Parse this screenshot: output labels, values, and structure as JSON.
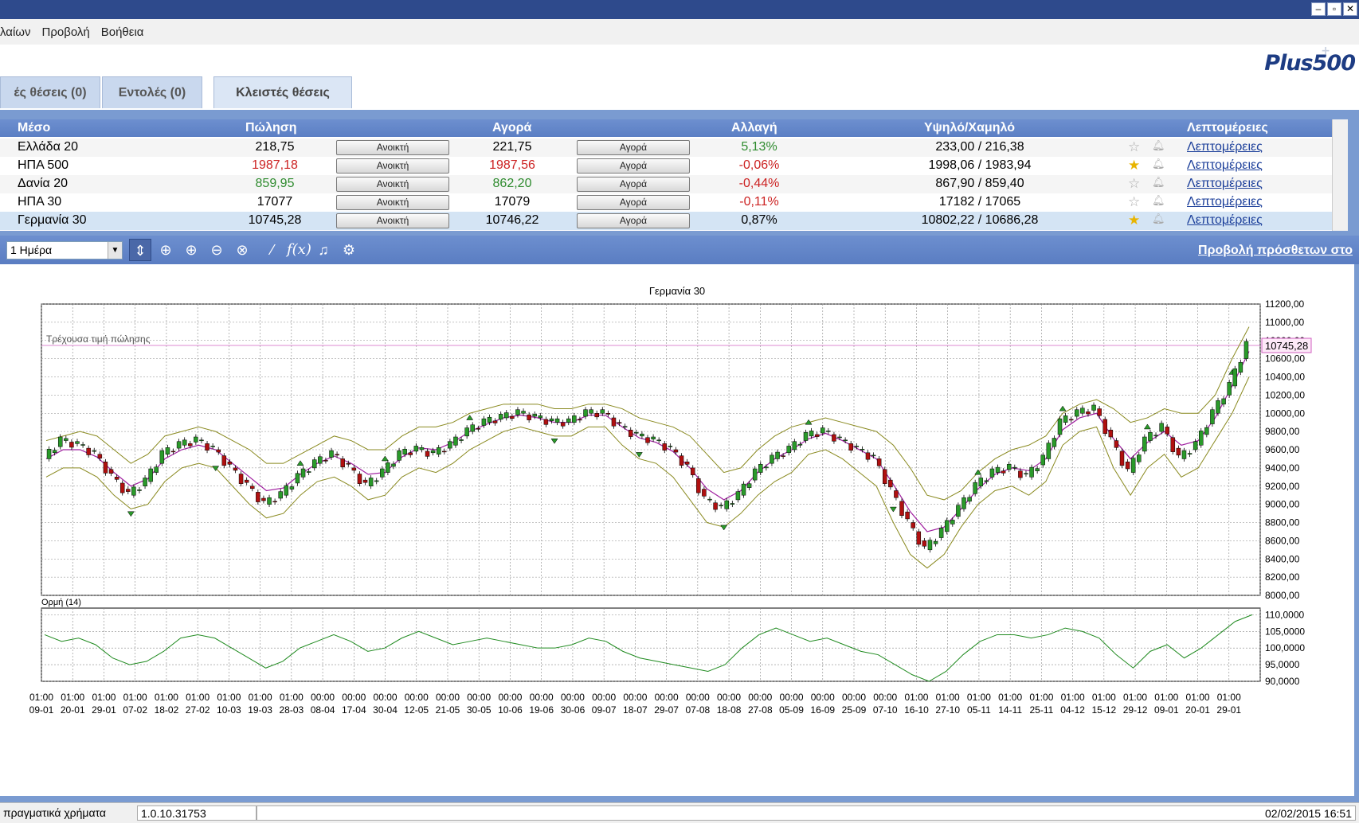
{
  "window": {
    "minimize": "–",
    "restore": "▫",
    "close": "✕"
  },
  "menu": {
    "items": [
      "λαίων",
      "Προβολή",
      "Βοήθεια"
    ]
  },
  "logo": {
    "text": "Plus500",
    "plus": "+"
  },
  "tabs": [
    {
      "label": "ές θέσεις (0)"
    },
    {
      "label": "Εντολές (0)"
    },
    {
      "label": "Κλειστές θέσεις"
    }
  ],
  "table": {
    "headers": [
      "Μέσο",
      "Πώληση",
      "Αγορά",
      "Αλλαγή",
      "Υψηλό/Χαμηλό",
      "Λεπτομέρειες"
    ],
    "rows": [
      {
        "name": "Ελλάδα 20",
        "sell": "218,75",
        "sell_btn": "Ανοικτή",
        "buy": "221,75",
        "buy_btn": "Αγορά",
        "change": "5,13%",
        "hilo": "233,00 / 216,38",
        "details": "Λεπτομέρειες",
        "fav": false,
        "sell_color": "#000000",
        "buy_color": "#000000",
        "change_color": "#2e8b2e"
      },
      {
        "name": "ΗΠΑ 500",
        "sell": "1987,18",
        "sell_btn": "Ανοικτή",
        "buy": "1987,56",
        "buy_btn": "Αγορά",
        "change": "-0,06%",
        "hilo": "1998,06 / 1983,94",
        "details": "Λεπτομέρειες",
        "fav": true,
        "sell_color": "#cc2222",
        "buy_color": "#cc2222",
        "change_color": "#cc2222"
      },
      {
        "name": "Δανία 20",
        "sell": "859,95",
        "sell_btn": "Ανοικτή",
        "buy": "862,20",
        "buy_btn": "Αγορά",
        "change": "-0,44%",
        "hilo": "867,90 / 859,40",
        "details": "Λεπτομέρειες",
        "fav": false,
        "sell_color": "#2e8b2e",
        "buy_color": "#2e8b2e",
        "change_color": "#cc2222"
      },
      {
        "name": "ΗΠΑ 30",
        "sell": "17077",
        "sell_btn": "Ανοικτή",
        "buy": "17079",
        "buy_btn": "Αγορά",
        "change": "-0,11%",
        "hilo": "17182 / 17065",
        "details": "Λεπτομέρειες",
        "fav": false,
        "sell_color": "#000000",
        "buy_color": "#000000",
        "change_color": "#cc2222"
      },
      {
        "name": "Γερμανία 30",
        "sell": "10745,28",
        "sell_btn": "Ανοικτή",
        "buy": "10746,22",
        "buy_btn": "Αγορά",
        "change": "0,87%",
        "hilo": "10802,22 / 10686,28",
        "details": "Λεπτομέρειες",
        "fav": true,
        "sell_color": "#000000",
        "buy_color": "#000000",
        "change_color": "#000000",
        "selected": true
      }
    ]
  },
  "toolbar": {
    "period": "1 Ημέρα",
    "icons": [
      "cursor-icon",
      "crosshair-icon",
      "zoom-in-icon",
      "zoom-out-icon",
      "zoom-reset-icon",
      "line-tool-icon",
      "function-icon",
      "alert-bell-icon",
      "gear-icon"
    ],
    "link": "Προβολή πρόσθετων στο"
  },
  "chart_data": {
    "type": "candlestick",
    "title": "Γερμανία 30",
    "price_line_label": "Τρέχουσα τιμή πώλησης",
    "current_price": "10745,28",
    "current_price_value": 10745.28,
    "ylim": [
      8000,
      11200
    ],
    "yticks": [
      "11200,00",
      "11000,00",
      "10800,00",
      "10600,00",
      "10400,00",
      "10200,00",
      "10000,00",
      "9800,00",
      "9600,00",
      "9400,00",
      "9200,00",
      "9000,00",
      "8800,00",
      "8600,00",
      "8400,00",
      "8200,00",
      "8000,00"
    ],
    "xlabels_time": [
      "01:00",
      "01:00",
      "01:00",
      "01:00",
      "01:00",
      "01:00",
      "01:00",
      "01:00",
      "01:00",
      "00:00",
      "00:00",
      "00:00",
      "00:00",
      "00:00",
      "00:00",
      "00:00",
      "00:00",
      "00:00",
      "00:00",
      "00:00",
      "00:00",
      "00:00",
      "00:00",
      "00:00",
      "00:00",
      "00:00",
      "00:00",
      "00:00",
      "01:00",
      "01:00",
      "01:00",
      "01:00",
      "01:00",
      "01:00",
      "01:00",
      "01:00",
      "01:00",
      "01:00",
      "01:00"
    ],
    "xlabels_date": [
      "09-01",
      "20-01",
      "29-01",
      "07-02",
      "18-02",
      "27-02",
      "10-03",
      "19-03",
      "28-03",
      "08-04",
      "17-04",
      "30-04",
      "12-05",
      "21-05",
      "30-05",
      "10-06",
      "19-06",
      "30-06",
      "09-07",
      "18-07",
      "29-07",
      "07-08",
      "18-08",
      "27-08",
      "05-09",
      "16-09",
      "25-09",
      "07-10",
      "16-10",
      "27-10",
      "05-11",
      "14-11",
      "25-11",
      "04-12",
      "15-12",
      "29-12",
      "09-01",
      "20-01",
      "29-01"
    ],
    "closes": [
      9500,
      9700,
      9650,
      9550,
      9300,
      9100,
      9250,
      9550,
      9650,
      9700,
      9600,
      9400,
      9200,
      9000,
      9100,
      9300,
      9450,
      9550,
      9400,
      9200,
      9350,
      9550,
      9600,
      9550,
      9650,
      9800,
      9900,
      9950,
      10000,
      9950,
      9900,
      9900,
      10000,
      10000,
      9850,
      9750,
      9700,
      9600,
      9400,
      9050,
      8950,
      9100,
      9350,
      9500,
      9600,
      9750,
      9800,
      9700,
      9600,
      9500,
      9150,
      8800,
      8500,
      8700,
      8950,
      9200,
      9350,
      9400,
      9300,
      9500,
      9900,
      10000,
      10050,
      9700,
      9350,
      9700,
      9850,
      9500,
      9650,
      10000,
      10300,
      10750
    ],
    "upper_band": [
      9700,
      9750,
      9800,
      9750,
      9600,
      9450,
      9550,
      9750,
      9800,
      9850,
      9800,
      9700,
      9600,
      9450,
      9450,
      9550,
      9650,
      9750,
      9700,
      9600,
      9600,
      9750,
      9850,
      9850,
      9900,
      10000,
      10050,
      10100,
      10100,
      10100,
      10050,
      10050,
      10100,
      10100,
      10050,
      9950,
      9900,
      9850,
      9750,
      9550,
      9350,
      9400,
      9600,
      9750,
      9850,
      9900,
      9950,
      9900,
      9850,
      9800,
      9650,
      9400,
      9100,
      9050,
      9150,
      9350,
      9500,
      9600,
      9650,
      9750,
      10000,
      10100,
      10150,
      10050,
      9900,
      9950,
      10050,
      10000,
      10000,
      10200,
      10600,
      10950
    ],
    "lower_band": [
      9300,
      9400,
      9400,
      9300,
      9100,
      8950,
      9000,
      9250,
      9400,
      9450,
      9400,
      9200,
      9000,
      8850,
      8900,
      9100,
      9250,
      9300,
      9200,
      9050,
      9100,
      9300,
      9400,
      9350,
      9450,
      9600,
      9700,
      9800,
      9850,
      9800,
      9750,
      9750,
      9850,
      9850,
      9650,
      9500,
      9450,
      9300,
      9050,
      8800,
      8750,
      8900,
      9100,
      9250,
      9350,
      9550,
      9600,
      9500,
      9350,
      9200,
      8800,
      8450,
      8300,
      8450,
      8750,
      9000,
      9150,
      9200,
      9100,
      9250,
      9650,
      9800,
      9850,
      9400,
      9100,
      9400,
      9550,
      9300,
      9400,
      9700,
      10000,
      10400
    ],
    "ma": [
      9500,
      9600,
      9600,
      9520,
      9350,
      9200,
      9280,
      9500,
      9600,
      9650,
      9600,
      9450,
      9300,
      9150,
      9180,
      9330,
      9450,
      9530,
      9450,
      9330,
      9350,
      9520,
      9620,
      9600,
      9680,
      9800,
      9880,
      9950,
      9980,
      9950,
      9900,
      9900,
      9980,
      9980,
      9850,
      9730,
      9680,
      9580,
      9400,
      9170,
      9050,
      9150,
      9350,
      9500,
      9600,
      9720,
      9780,
      9700,
      9600,
      9500,
      9220,
      8920,
      8700,
      8750,
      8950,
      9170,
      9330,
      9400,
      9370,
      9500,
      9820,
      9950,
      10000,
      9720,
      9500,
      9680,
      9800,
      9650,
      9700,
      9950,
      10300,
      10680
    ],
    "indicator": {
      "label": "Ορμή (14)",
      "ylim": [
        90,
        112
      ],
      "yticks": [
        "110,0000",
        "105,0000",
        "100,0000",
        "95,0000",
        "90,0000"
      ],
      "values": [
        104,
        102,
        103,
        101,
        97,
        95,
        96,
        99,
        103,
        104,
        103,
        100,
        97,
        94,
        96,
        100,
        102,
        104,
        102,
        99,
        100,
        103,
        105,
        103,
        101,
        102,
        103,
        102,
        101,
        100,
        100,
        101,
        103,
        102,
        99,
        97,
        96,
        95,
        94,
        93,
        95,
        100,
        104,
        106,
        104,
        102,
        103,
        101,
        99,
        98,
        95,
        92,
        90,
        93,
        98,
        102,
        104,
        104,
        103,
        104,
        106,
        105,
        103,
        98,
        94,
        99,
        101,
        97,
        100,
        104,
        108,
        110
      ]
    }
  },
  "status": {
    "mode": "πραγματικά χρήματα",
    "version": "1.0.10.31753",
    "datetime": "02/02/2015 16:51"
  }
}
